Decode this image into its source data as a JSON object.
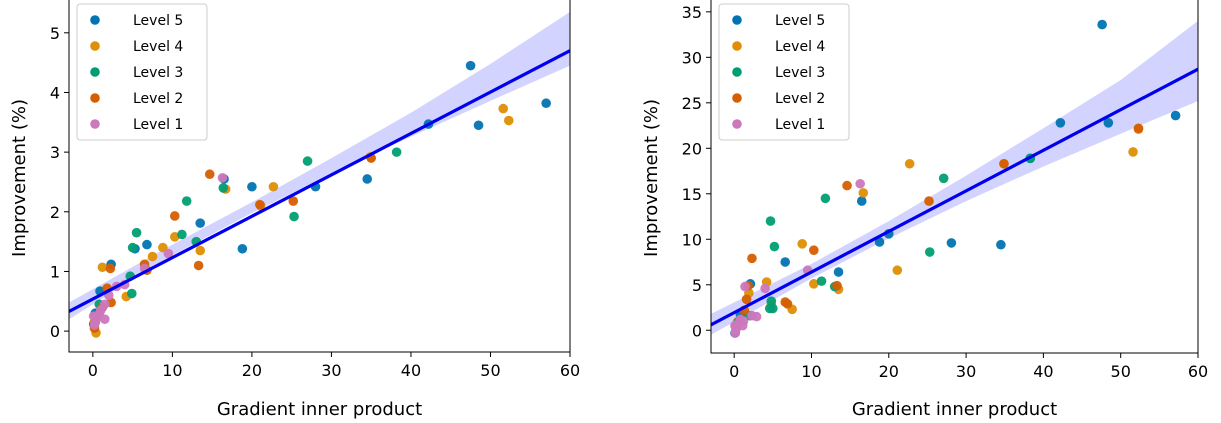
{
  "chart_data": [
    {
      "type": "scatter",
      "xlabel": "Gradient inner product",
      "ylabel": "Improvement (%)",
      "xlim": [
        -3,
        60
      ],
      "ylim": [
        -0.35,
        5.55
      ],
      "xticks": [
        0,
        10,
        20,
        30,
        40,
        50,
        60
      ],
      "yticks": [
        0,
        1,
        2,
        3,
        4,
        5
      ],
      "legend_position": "top-left",
      "fit": {
        "x0": -3,
        "y0": 0.33,
        "x1": 60,
        "y1": 4.7,
        "color": "#0000ee"
      },
      "band": {
        "x": [
          -3,
          10,
          20,
          30,
          40,
          50,
          60
        ],
        "lower": [
          0.2,
          1.27,
          1.98,
          2.64,
          3.26,
          3.86,
          4.45
        ],
        "upper": [
          0.48,
          1.45,
          2.16,
          2.9,
          3.66,
          4.48,
          5.35
        ],
        "color": "#d3d3ff"
      },
      "series": [
        {
          "name": "Level 5",
          "color": "#0173b2",
          "points": [
            [
              47.5,
              4.45
            ],
            [
              57,
              3.82
            ],
            [
              48.5,
              3.45
            ],
            [
              42.2,
              3.47
            ],
            [
              34.5,
              2.55
            ],
            [
              28,
              2.42
            ],
            [
              20,
              2.42
            ],
            [
              18.8,
              1.38
            ],
            [
              16.5,
              2.55
            ],
            [
              13.5,
              1.81
            ],
            [
              6.8,
              1.45
            ],
            [
              5.3,
              1.38
            ],
            [
              2.3,
              1.12
            ],
            [
              0.9,
              0.67
            ],
            [
              0.3,
              0.3
            ],
            [
              0.1,
              0.12
            ]
          ]
        },
        {
          "name": "Level 4",
          "color": "#de8f05",
          "points": [
            [
              52.3,
              3.53
            ],
            [
              51.6,
              3.73
            ],
            [
              34.9,
              2.92
            ],
            [
              22.7,
              2.42
            ],
            [
              21.1,
              2.1
            ],
            [
              16.7,
              2.38
            ],
            [
              13.5,
              1.35
            ],
            [
              10.3,
              1.58
            ],
            [
              8.8,
              1.4
            ],
            [
              7.5,
              1.25
            ],
            [
              4.2,
              0.58
            ],
            [
              1.2,
              1.07
            ],
            [
              0.4,
              -0.03
            ],
            [
              0.2,
              0.15
            ]
          ]
        },
        {
          "name": "Level 3",
          "color": "#029e73",
          "points": [
            [
              38.2,
              3.0
            ],
            [
              27,
              2.85
            ],
            [
              25.3,
              1.92
            ],
            [
              16.4,
              2.4
            ],
            [
              11.8,
              2.18
            ],
            [
              11.2,
              1.62
            ],
            [
              13.0,
              1.5
            ],
            [
              5.5,
              1.65
            ],
            [
              5.0,
              1.4
            ],
            [
              4.7,
              0.92
            ],
            [
              4.9,
              0.63
            ],
            [
              0.8,
              0.45
            ],
            [
              0.3,
              0.15
            ]
          ]
        },
        {
          "name": "Level 2",
          "color": "#d55e00",
          "points": [
            [
              35.0,
              2.9
            ],
            [
              25.2,
              2.18
            ],
            [
              21.0,
              2.12
            ],
            [
              14.7,
              2.63
            ],
            [
              13.3,
              1.1
            ],
            [
              10.3,
              1.93
            ],
            [
              6.8,
              1.02
            ],
            [
              6.5,
              1.12
            ],
            [
              2.2,
              1.05
            ],
            [
              1.8,
              0.72
            ],
            [
              2.3,
              0.48
            ],
            [
              1.2,
              0.4
            ],
            [
              0.5,
              0.25
            ],
            [
              0.2,
              0.05
            ]
          ]
        },
        {
          "name": "Level 1",
          "color": "#cc78bc",
          "points": [
            [
              16.3,
              2.57
            ],
            [
              9.5,
              1.3
            ],
            [
              6.5,
              1.05
            ],
            [
              4.0,
              0.78
            ],
            [
              3.0,
              0.75
            ],
            [
              2.0,
              0.6
            ],
            [
              1.5,
              0.45
            ],
            [
              1.5,
              0.2
            ],
            [
              1.0,
              0.35
            ],
            [
              0.8,
              0.28
            ],
            [
              0.5,
              0.22
            ],
            [
              0.3,
              0.15
            ],
            [
              0.2,
              0.1
            ],
            [
              0.1,
              0.25
            ]
          ]
        }
      ]
    },
    {
      "type": "scatter",
      "xlabel": "Gradient inner product",
      "ylabel": "Improvement (%)",
      "xlim": [
        -3,
        60
      ],
      "ylim": [
        -2.5,
        36.3
      ],
      "xticks": [
        0,
        10,
        20,
        30,
        40,
        50,
        60
      ],
      "yticks": [
        0,
        5,
        10,
        15,
        20,
        25,
        30,
        35
      ],
      "legend_position": "top-left",
      "fit": {
        "x0": -3,
        "y0": 0.6,
        "x1": 60,
        "y1": 28.7,
        "color": "#0000ee"
      },
      "band": {
        "x": [
          -3,
          10,
          20,
          30,
          40,
          50,
          60
        ],
        "lower": [
          -0.5,
          5.7,
          10.1,
          14.2,
          18.0,
          21.6,
          25.2
        ],
        "upper": [
          1.8,
          7.3,
          12.0,
          17.0,
          22.2,
          27.5,
          34.0
        ],
        "color": "#d3d3ff"
      },
      "series": [
        {
          "name": "Level 5",
          "color": "#0173b2",
          "points": [
            [
              47.6,
              33.6
            ],
            [
              57.1,
              23.6
            ],
            [
              48.4,
              22.8
            ],
            [
              42.2,
              22.8
            ],
            [
              38.3,
              18.9
            ],
            [
              34.5,
              9.4
            ],
            [
              28.1,
              9.6
            ],
            [
              20.0,
              10.6
            ],
            [
              18.8,
              9.7
            ],
            [
              16.5,
              14.2
            ],
            [
              13.5,
              6.4
            ],
            [
              6.6,
              7.5
            ],
            [
              2.1,
              5.1
            ],
            [
              0.8,
              1.7
            ],
            [
              0.3,
              0.5
            ],
            [
              0.1,
              -0.3
            ]
          ]
        },
        {
          "name": "Level 4",
          "color": "#de8f05",
          "points": [
            [
              52.3,
              22.1
            ],
            [
              51.6,
              19.6
            ],
            [
              34.9,
              18.3
            ],
            [
              22.7,
              18.3
            ],
            [
              21.1,
              6.6
            ],
            [
              16.7,
              15.1
            ],
            [
              13.5,
              4.5
            ],
            [
              10.3,
              5.1
            ],
            [
              8.8,
              9.5
            ],
            [
              7.5,
              2.3
            ],
            [
              4.2,
              5.3
            ],
            [
              4.8,
              2.8
            ],
            [
              1.9,
              4.1
            ],
            [
              0.4,
              0.9
            ]
          ]
        },
        {
          "name": "Level 3",
          "color": "#029e73",
          "points": [
            [
              38.3,
              18.9
            ],
            [
              27.1,
              16.7
            ],
            [
              25.3,
              8.6
            ],
            [
              11.8,
              14.5
            ],
            [
              11.3,
              5.4
            ],
            [
              13.0,
              4.8
            ],
            [
              5.2,
              9.2
            ],
            [
              4.7,
              12.0
            ],
            [
              4.8,
              3.2
            ],
            [
              5.0,
              2.4
            ],
            [
              4.6,
              2.4
            ],
            [
              2.0,
              1.6
            ],
            [
              0.6,
              1.0
            ]
          ]
        },
        {
          "name": "Level 2",
          "color": "#d55e00",
          "points": [
            [
              52.3,
              22.2
            ],
            [
              34.9,
              18.3
            ],
            [
              25.2,
              14.2
            ],
            [
              14.6,
              15.9
            ],
            [
              13.3,
              4.9
            ],
            [
              10.3,
              8.8
            ],
            [
              6.6,
              3.1
            ],
            [
              6.9,
              2.9
            ],
            [
              2.3,
              7.9
            ],
            [
              1.8,
              4.9
            ],
            [
              1.6,
              3.4
            ],
            [
              1.3,
              2.2
            ],
            [
              0.8,
              1.1
            ],
            [
              0.3,
              0.4
            ]
          ]
        },
        {
          "name": "Level 1",
          "color": "#cc78bc",
          "points": [
            [
              16.3,
              16.1
            ],
            [
              9.5,
              6.6
            ],
            [
              4.0,
              4.6
            ],
            [
              2.9,
              1.5
            ],
            [
              2.3,
              1.6
            ],
            [
              1.4,
              4.8
            ],
            [
              1.2,
              1.0
            ],
            [
              1.1,
              0.5
            ],
            [
              0.8,
              1.2
            ],
            [
              0.5,
              0.7
            ],
            [
              0.3,
              0.3
            ],
            [
              0.2,
              0.0
            ],
            [
              0.15,
              -0.3
            ],
            [
              0.1,
              0.5
            ]
          ]
        }
      ]
    }
  ]
}
